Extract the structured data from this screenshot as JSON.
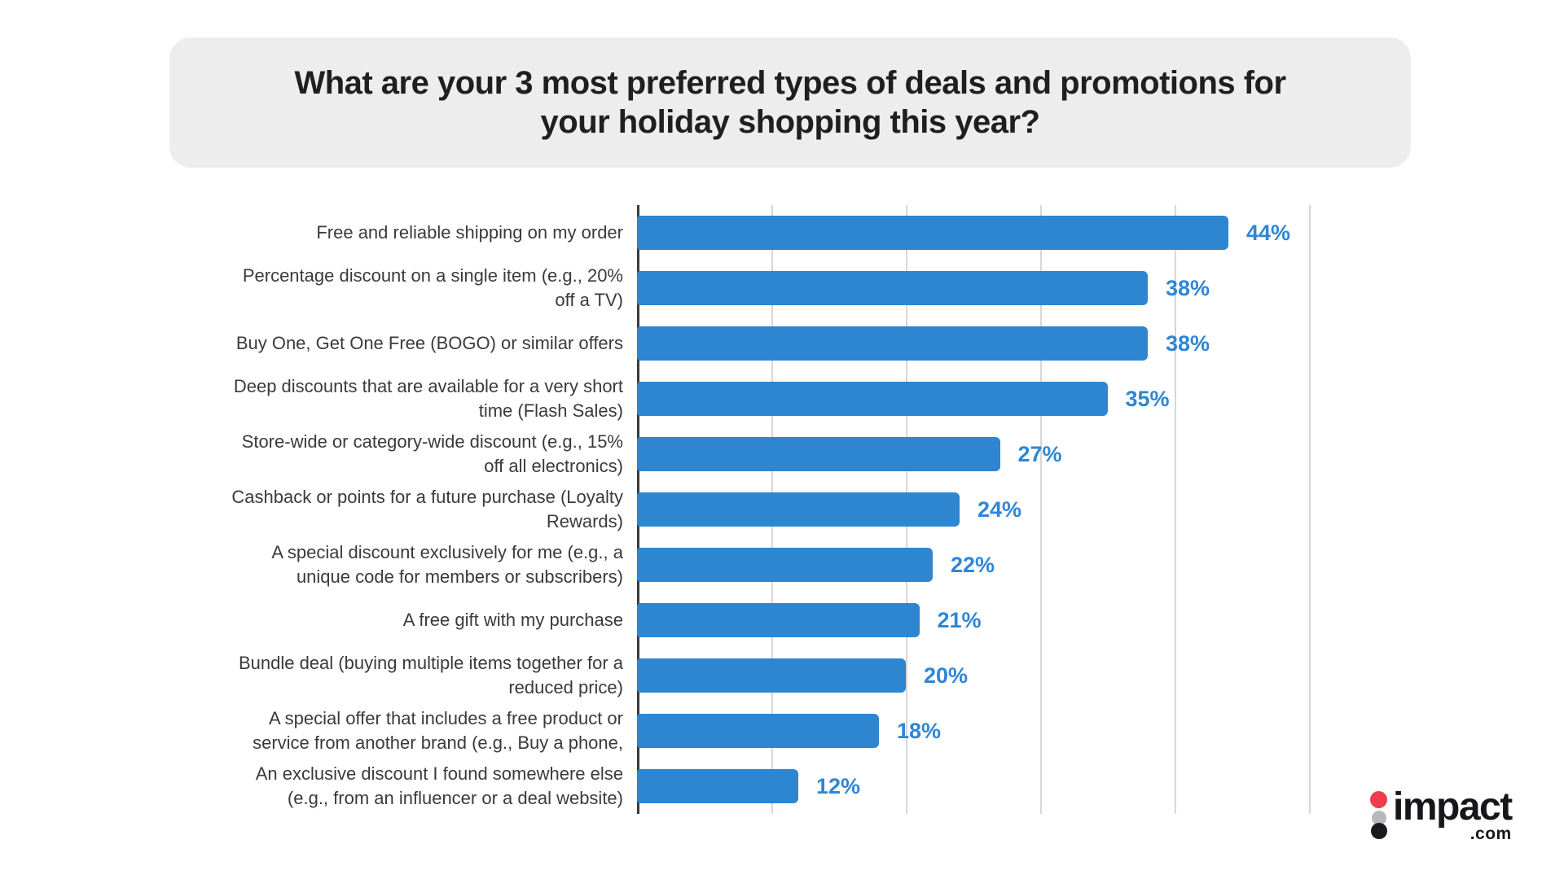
{
  "title": "What are your 3 most preferred types of deals and promotions for\nyour holiday shopping this year?",
  "chart_data": {
    "type": "bar",
    "orientation": "horizontal",
    "title": "What are your 3 most preferred types of deals and promotions for your holiday shopping this year?",
    "categories": [
      "Free and reliable shipping on my order",
      "Percentage discount on a single item (e.g., 20% off a TV)",
      "Buy One, Get One Free (BOGO) or similar offers",
      "Deep discounts that are available for a very short time (Flash Sales)",
      "Store-wide or category-wide discount (e.g., 15% off all electronics)",
      "Cashback or points for a future purchase (Loyalty Rewards)",
      "A special discount exclusively for me (e.g., a unique code for members or subscribers)",
      "A free gift with my purchase",
      "Bundle deal (buying multiple items together for a reduced price)",
      "A special offer that includes a free product or service from another brand (e.g., Buy a phone,",
      "An exclusive discount I found somewhere else (e.g., from an influencer or a deal website)"
    ],
    "categories_wrapped": [
      "Free and reliable shipping on my order",
      "Percentage discount on a single item (e.g., 20%\noff a TV)",
      "Buy One, Get One Free (BOGO) or similar offers",
      "Deep discounts that are available for a very short\ntime (Flash Sales)",
      "Store-wide or category-wide discount (e.g., 15%\noff all electronics)",
      "Cashback or points for a future purchase (Loyalty\nRewards)",
      "A special discount exclusively for me (e.g., a\nunique code for members or subscribers)",
      "A free gift with my purchase",
      "Bundle deal (buying multiple items together for a\nreduced price)",
      "A special offer that includes a free product or\nservice from another brand (e.g., Buy a phone,",
      "An exclusive discount I found somewhere else\n(e.g., from an influencer or a deal website)"
    ],
    "values": [
      44,
      38,
      38,
      35,
      27,
      24,
      22,
      21,
      20,
      18,
      12
    ],
    "value_suffix": "%",
    "xlabel": "",
    "ylabel": "",
    "xlim": [
      0,
      50
    ],
    "gridline_step_pct": 10,
    "grid": true,
    "x_tick_labels_shown": false,
    "legend": false
  },
  "colors": {
    "bar": "#2e86d1",
    "value_label": "#2e86d6",
    "axis": "#3b3b3b",
    "gridline": "#d7d7d7",
    "title_bg": "#ededee",
    "title_text": "#1f1f1f",
    "category_text": "#3a3a3a",
    "background": "#ffffff",
    "logo_red": "#ee3e4d",
    "logo_gray": "#b7b8bc",
    "logo_black": "#1a1a1e"
  },
  "logo": {
    "wordmark": "impact",
    "tld": ".com"
  }
}
